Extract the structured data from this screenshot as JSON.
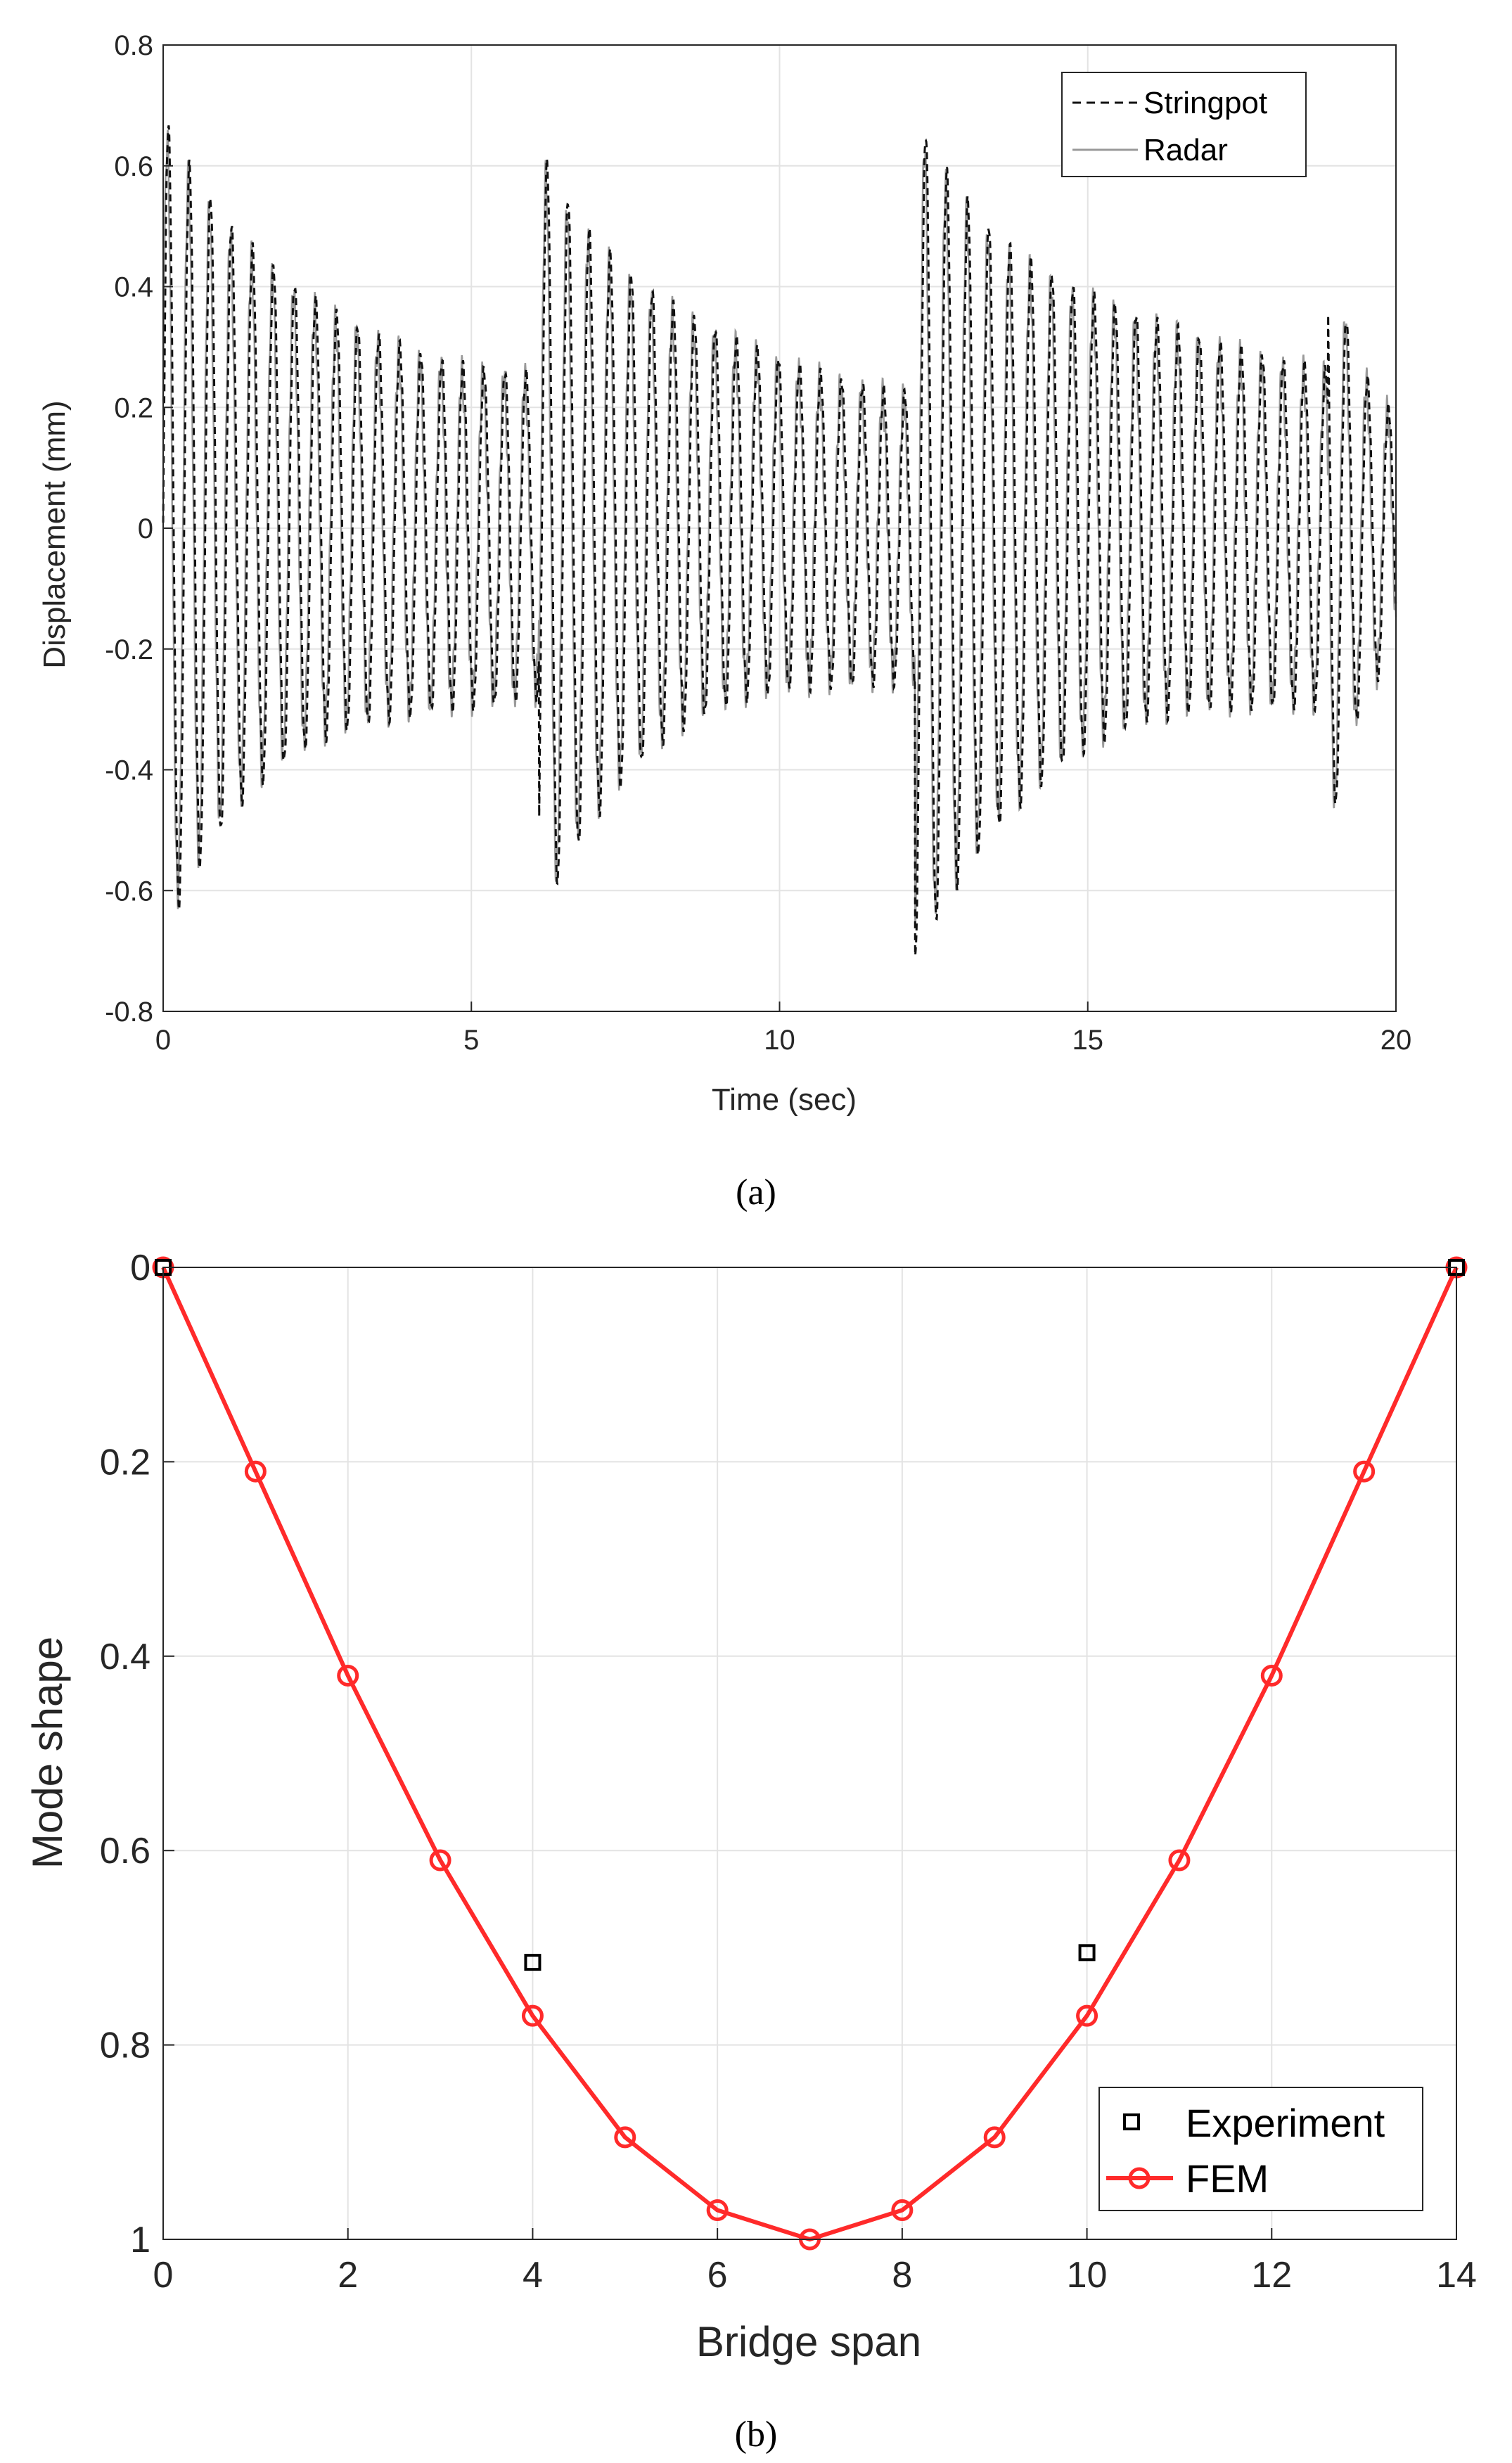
{
  "chart_data": [
    {
      "type": "line",
      "caption": "(a)",
      "xlabel": "Time (sec)",
      "ylabel": "Displacement (mm)",
      "xlim": [
        0,
        20
      ],
      "ylim": [
        -0.8,
        0.8
      ],
      "xticks": [
        "0",
        "5",
        "10",
        "15",
        "20"
      ],
      "yticks": [
        "0.8",
        "0.6",
        "0.4",
        "0.2",
        "0",
        "-0.2",
        "-0.4",
        "-0.6",
        "-0.8"
      ],
      "grid": true,
      "legend_position": "top-right",
      "signal": {
        "frequency_hz": 2.93,
        "hammer_times": [
          0.1,
          6.1,
          12.2,
          18.9
        ],
        "peak_amplitudes": [
          0.66,
          0.64,
          0.7,
          0.52
        ],
        "floor_amplitudes": [
          0.25,
          0.22,
          0.26,
          0.16
        ]
      },
      "series": [
        {
          "name": "Stringpot",
          "style": "dashed",
          "color": "#111111"
        },
        {
          "name": "Radar",
          "style": "solid",
          "color": "#9a9a9a"
        }
      ]
    },
    {
      "type": "line",
      "caption": "(b)",
      "xlabel": "Bridge span",
      "ylabel": "Mode shape",
      "xlim": [
        0,
        14
      ],
      "ylim": [
        0,
        1
      ],
      "y_reversed": true,
      "xticks": [
        "0",
        "2",
        "4",
        "6",
        "8",
        "10",
        "12",
        "14"
      ],
      "yticks": [
        "0",
        "0.2",
        "0.4",
        "0.6",
        "0.8",
        "1"
      ],
      "grid": true,
      "legend_position": "bottom-right",
      "series": [
        {
          "name": "Experiment",
          "marker": "square",
          "color": "#000000",
          "x": [
            0,
            4,
            10,
            14
          ],
          "y": [
            0,
            0.715,
            0.705,
            0
          ]
        },
        {
          "name": "FEM",
          "marker": "circle",
          "color": "#ff2a2a",
          "x": [
            0,
            1,
            2,
            3,
            4,
            5,
            6,
            7,
            8,
            9,
            10,
            11,
            12,
            13,
            14
          ],
          "y": [
            0,
            0.21,
            0.42,
            0.61,
            0.77,
            0.895,
            0.97,
            1.0,
            0.97,
            0.895,
            0.77,
            0.61,
            0.42,
            0.21,
            0
          ]
        }
      ]
    }
  ]
}
